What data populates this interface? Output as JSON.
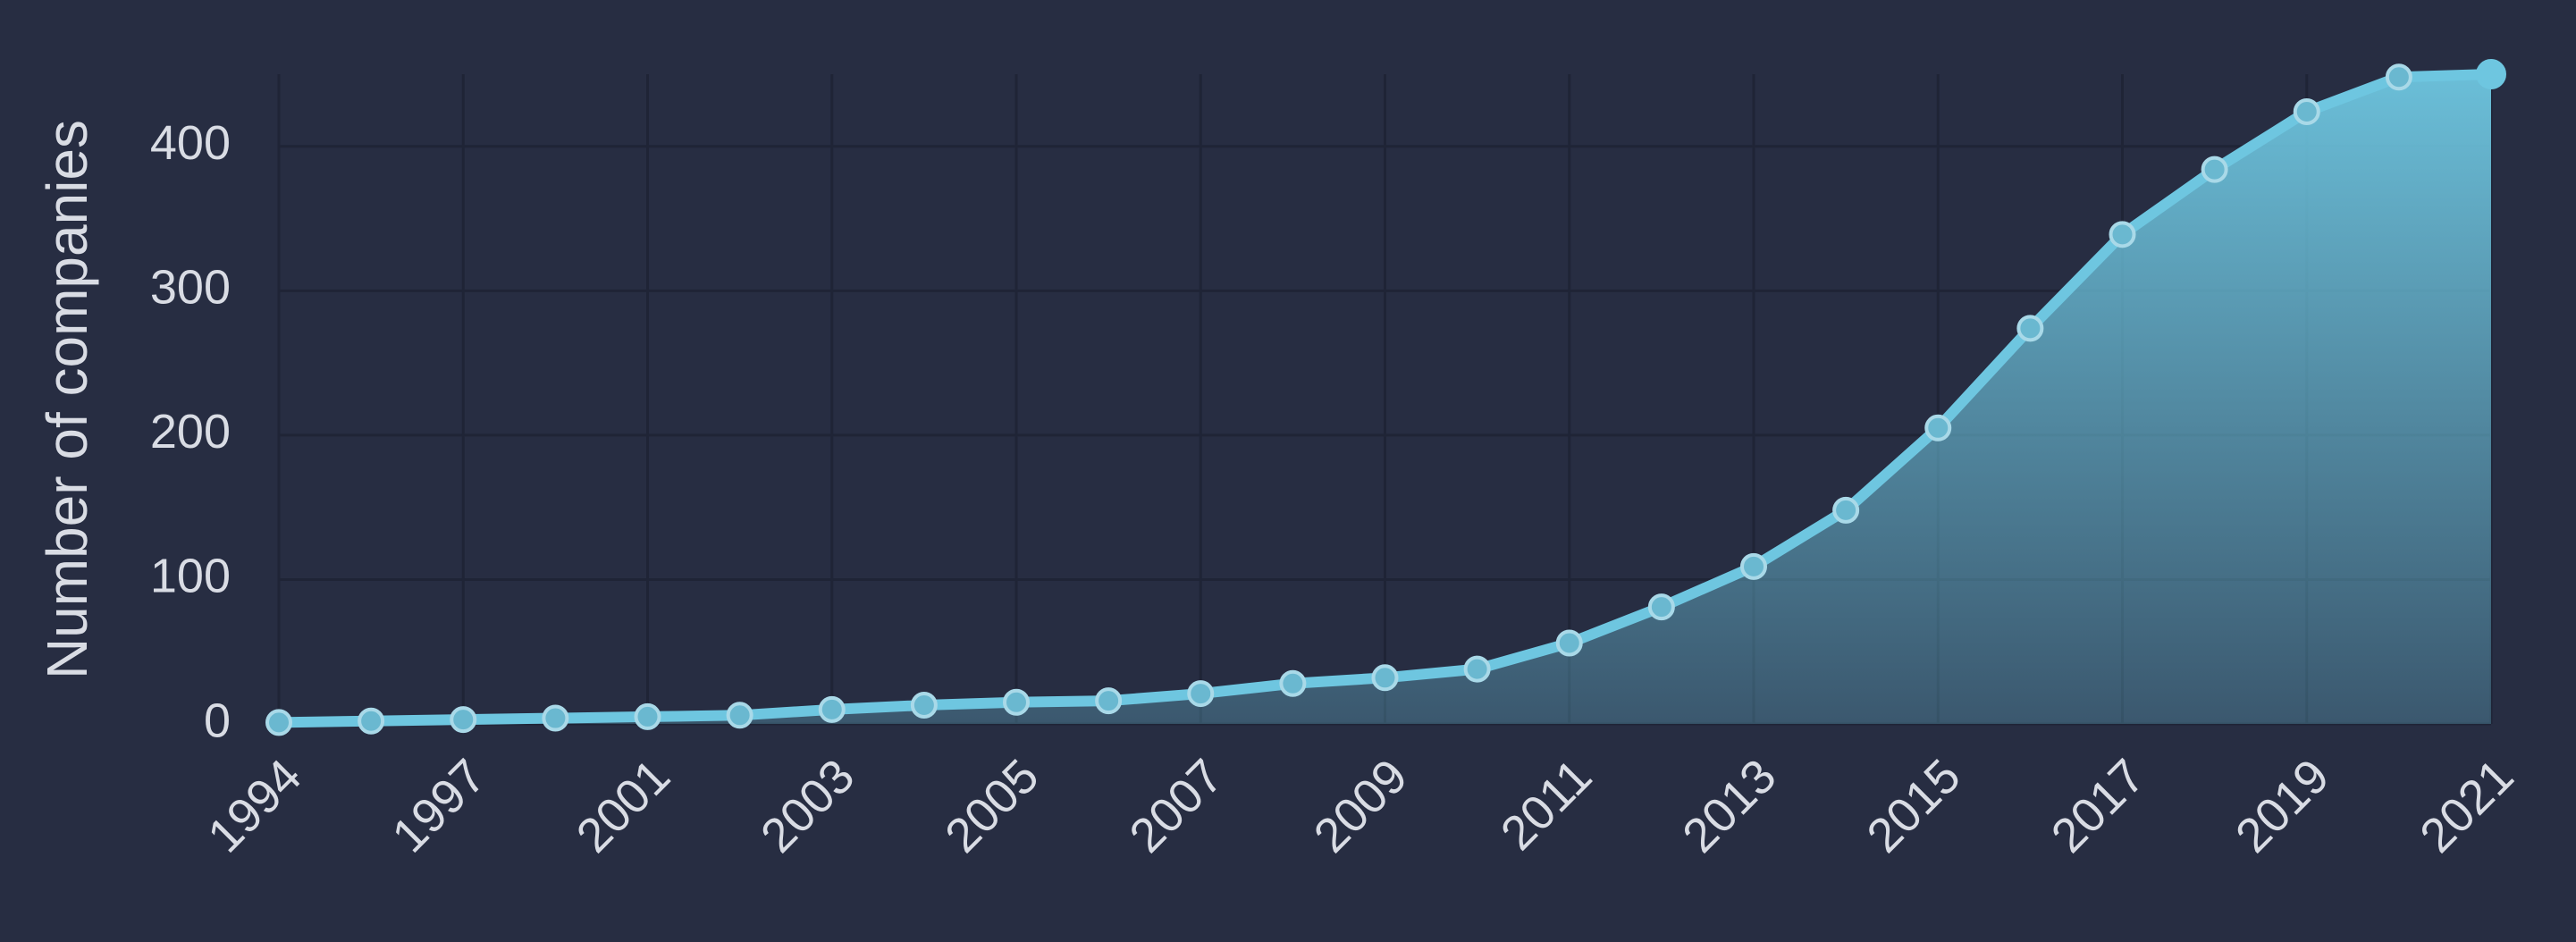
{
  "chart_data": {
    "type": "area",
    "y_label": "Number of companies",
    "categories": [
      "1994",
      null,
      "1997",
      null,
      "2001",
      null,
      "2003",
      null,
      "2005",
      null,
      "2007",
      null,
      "2009",
      null,
      "2011",
      null,
      "2013",
      null,
      "2015",
      null,
      "2017",
      null,
      "2019",
      null,
      "2021"
    ],
    "values": [
      1,
      2,
      3,
      4,
      5,
      6,
      10,
      13,
      15,
      16,
      21,
      28,
      32,
      38,
      56,
      81,
      109,
      148,
      205,
      274,
      339,
      384,
      424,
      448,
      450
    ],
    "color": "#6ec6e0",
    "ylim": [
      0,
      450
    ],
    "yticks": [
      0,
      100,
      200,
      300,
      400
    ],
    "grid": true
  }
}
